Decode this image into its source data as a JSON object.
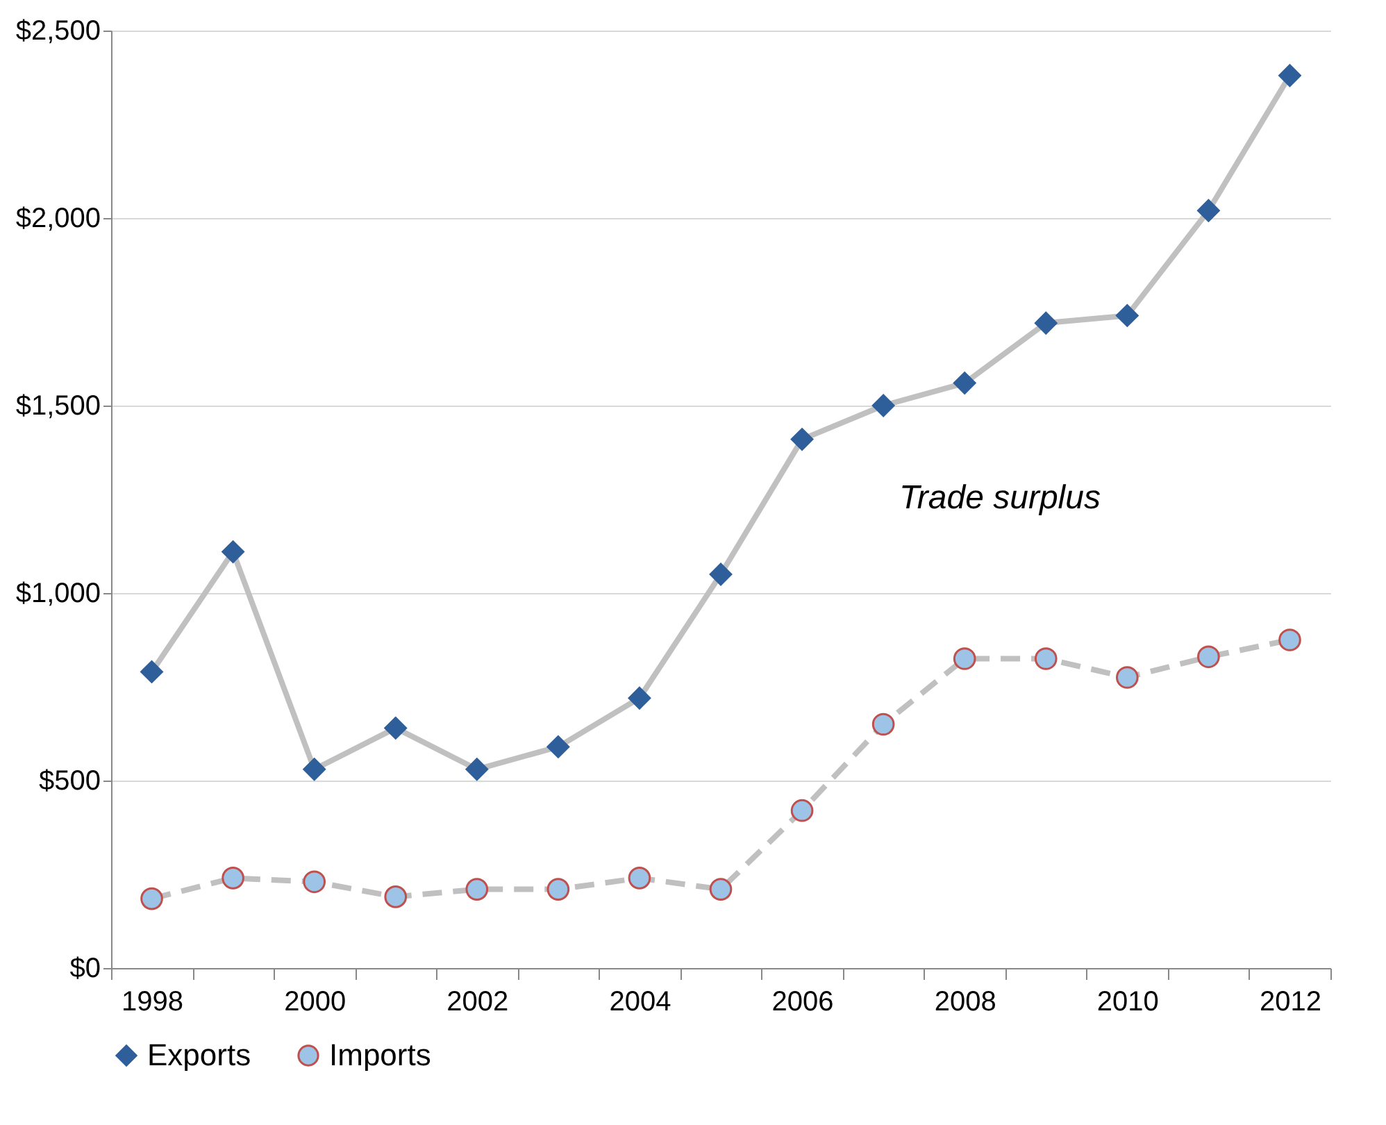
{
  "chart_data": {
    "type": "line",
    "categories": [
      "1998",
      null,
      "2000",
      null,
      "2002",
      null,
      "2004",
      null,
      "2006",
      null,
      "2008",
      null,
      "2010",
      null,
      "2012"
    ],
    "series": [
      {
        "name": "Exports",
        "color": "#2e5f9a",
        "marker": "diamond",
        "line_style": "solid",
        "values": [
          790,
          1110,
          530,
          640,
          530,
          590,
          720,
          1050,
          1410,
          1500,
          1560,
          1720,
          1740,
          2020,
          2380
        ]
      },
      {
        "name": "Imports",
        "color": "#9dc3e6",
        "marker": "circle",
        "line_style": "dashed",
        "values": [
          185,
          240,
          230,
          190,
          210,
          210,
          240,
          210,
          420,
          650,
          825,
          825,
          775,
          830,
          875
        ]
      }
    ],
    "ylim": [
      0,
      2500
    ],
    "yticks": [
      {
        "value": 0,
        "label": "$0"
      },
      {
        "value": 500,
        "label": "$500"
      },
      {
        "value": 1000,
        "label": "$1,000"
      },
      {
        "value": 1500,
        "label": "$1,500"
      },
      {
        "value": 2000,
        "label": "$2,000"
      },
      {
        "value": 2500,
        "label": "$2,500"
      }
    ],
    "grid": "y",
    "legend": "bottom",
    "annotations": [
      "Trade surplus"
    ]
  }
}
